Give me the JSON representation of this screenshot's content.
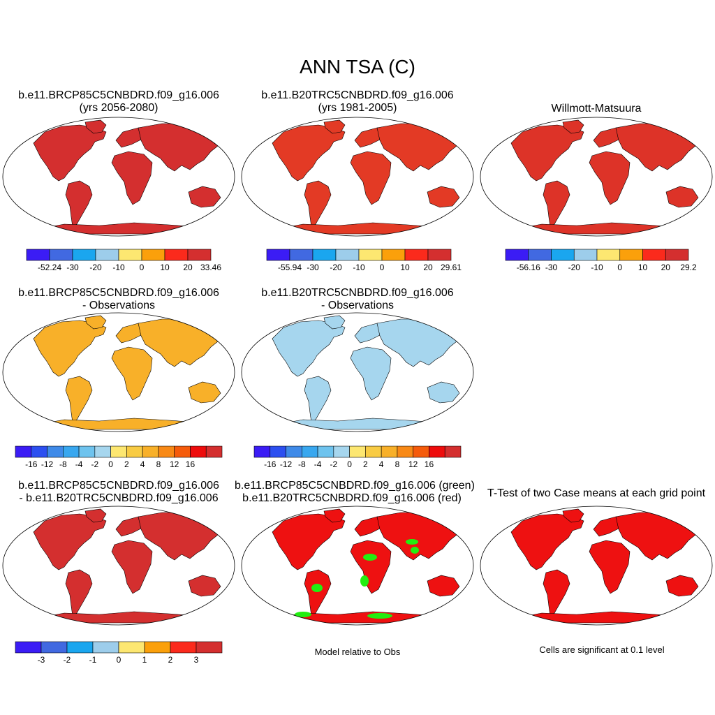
{
  "title": "ANN TSA (C)",
  "panels": {
    "p1": {
      "line1": "b.e11.BRCP85C5CNBDRD.f09_g16.006",
      "line2": "(yrs 2056-2080)"
    },
    "p2": {
      "line1": "b.e11.B20TRC5CNBDRD.f09_g16.006",
      "line2": "(yrs 1981-2005)"
    },
    "p3": {
      "line1": "Willmott-Matsuura"
    },
    "p4": {
      "line1": "b.e11.BRCP85C5CNBDRD.f09_g16.006",
      "line2": "- Observations"
    },
    "p5": {
      "line1": "b.e11.B20TRC5CNBDRD.f09_g16.006",
      "line2": "- Observations"
    },
    "p7": {
      "line1": "b.e11.BRCP85C5CNBDRD.f09_g16.006",
      "line2": "- b.e11.B20TRC5CNBDRD.f09_g16.006"
    },
    "p8": {
      "line1": "b.e11.BRCP85C5CNBDRD.f09_g16.006 (green)",
      "line2": "b.e11.B20TRC5CNBDRD.f09_g16.006 (red)"
    },
    "p9": {
      "line1": "T-Test of two Case means at each grid point"
    }
  },
  "notes": {
    "model_relative": "Model relative to Obs",
    "significance": "Cells are significant at 0.1 level"
  },
  "colorbars": {
    "abs": {
      "colors": [
        "#3b1cf5",
        "#4169e1",
        "#1aa6ef",
        "#9dcdeb",
        "#fde771",
        "#fba00b",
        "#fb2a1c",
        "#d42f2f"
      ],
      "cb1_labels": [
        "-52.24",
        "-30",
        "-20",
        "-10",
        "0",
        "10",
        "20",
        "33.46"
      ],
      "cb2_labels": [
        "-55.94",
        "-30",
        "-20",
        "-10",
        "0",
        "10",
        "20",
        "29.61"
      ],
      "cb3_labels": [
        "-56.16",
        "-30",
        "-20",
        "-10",
        "0",
        "10",
        "20",
        "29.2"
      ]
    },
    "diff": {
      "colors": [
        "#3b1cf5",
        "#2c4ff0",
        "#3f8ae8",
        "#38a7ef",
        "#6ec3ee",
        "#a6d6ee",
        "#fde771",
        "#f8cb43",
        "#f8b029",
        "#f88916",
        "#f55b0b",
        "#ee0c0c",
        "#d42f2f"
      ],
      "labels": [
        "-16",
        "-12",
        "-8",
        "-4",
        "-2",
        "0",
        "2",
        "4",
        "8",
        "12",
        "16"
      ]
    },
    "change": {
      "colors": [
        "#3b1cf5",
        "#4169e1",
        "#1aa6ef",
        "#9dcdeb",
        "#fde771",
        "#fba00b",
        "#fb2a1c",
        "#d42f2f"
      ],
      "labels": [
        "-3",
        "-2",
        "-1",
        "0",
        "1",
        "2",
        "3"
      ]
    }
  },
  "maps": {
    "ocean_color": "#ffffff",
    "outline_color": "#000000",
    "m1_fill": "#d42f2f",
    "m2_fill": "#e33a25",
    "m3_fill": "#dd3328",
    "m4_fill": "#f8b029",
    "m5_fill": "#a6d6ee",
    "m7_fill": "#d42f2f",
    "m8_fill": "#ee1111",
    "m8_accent": "#22ee11",
    "m9_fill": "#ee1111"
  }
}
